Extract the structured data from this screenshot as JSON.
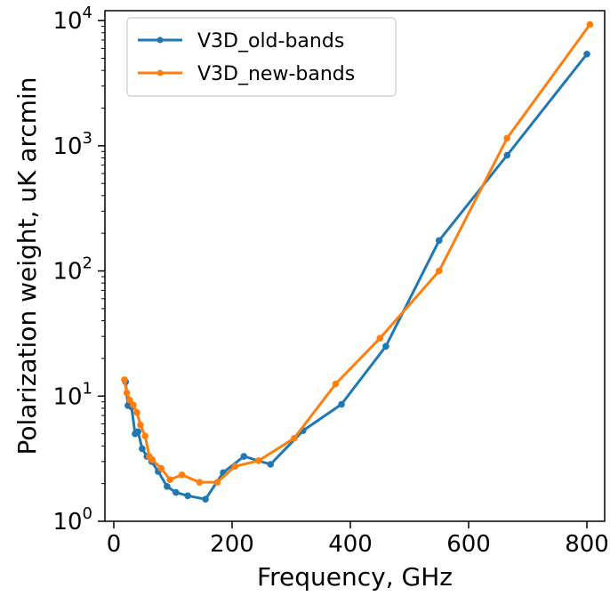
{
  "chart_data": {
    "type": "line",
    "title": "",
    "xlabel": "Frequency, GHz",
    "ylabel": "Polarization weight, uK arcmin",
    "xlim": [
      -15,
      830
    ],
    "ylim": [
      1,
      12000
    ],
    "yscale": "log",
    "x_ticks": [
      {
        "value": 0,
        "label": "0"
      },
      {
        "value": 200,
        "label": "200"
      },
      {
        "value": 400,
        "label": "400"
      },
      {
        "value": 600,
        "label": "600"
      },
      {
        "value": 800,
        "label": "800"
      }
    ],
    "y_ticks": [
      {
        "value": 1,
        "base": "10",
        "exp": "0"
      },
      {
        "value": 10,
        "base": "10",
        "exp": "1"
      },
      {
        "value": 100,
        "base": "10",
        "exp": "2"
      },
      {
        "value": 1000,
        "base": "10",
        "exp": "3"
      },
      {
        "value": 10000,
        "base": "10",
        "exp": "4"
      }
    ],
    "grid": false,
    "legend_position": "top-left",
    "series": [
      {
        "name": "V3D_old-bands",
        "color": "#1f77b4",
        "points": [
          [
            20,
            13
          ],
          [
            24,
            8.4
          ],
          [
            30,
            8.2
          ],
          [
            36,
            5
          ],
          [
            41,
            5.2
          ],
          [
            48,
            3.8
          ],
          [
            56,
            3.3
          ],
          [
            64,
            3
          ],
          [
            75,
            2.5
          ],
          [
            90,
            1.9
          ],
          [
            105,
            1.7
          ],
          [
            125,
            1.6
          ],
          [
            155,
            1.5
          ],
          [
            185,
            2.45
          ],
          [
            220,
            3.3
          ],
          [
            265,
            2.85
          ],
          [
            320,
            5.3
          ],
          [
            385,
            8.6
          ],
          [
            460,
            25
          ],
          [
            550,
            175
          ],
          [
            665,
            840
          ],
          [
            800,
            5400
          ]
        ]
      },
      {
        "name": "V3D_new-bands",
        "color": "#ff7f0e",
        "points": [
          [
            18,
            13.5
          ],
          [
            22,
            10.6
          ],
          [
            27,
            9.3
          ],
          [
            33,
            8.5
          ],
          [
            39,
            7.4
          ],
          [
            45,
            5.9
          ],
          [
            53,
            4.8
          ],
          [
            60,
            3.3
          ],
          [
            65,
            3.1
          ],
          [
            80,
            2.65
          ],
          [
            95,
            2.15
          ],
          [
            115,
            2.35
          ],
          [
            145,
            2.05
          ],
          [
            175,
            2.05
          ],
          [
            205,
            2.75
          ],
          [
            245,
            3.05
          ],
          [
            305,
            4.6
          ],
          [
            375,
            12.5
          ],
          [
            450,
            29
          ],
          [
            550,
            100
          ],
          [
            665,
            1150
          ],
          [
            805,
            9300
          ]
        ]
      }
    ]
  }
}
